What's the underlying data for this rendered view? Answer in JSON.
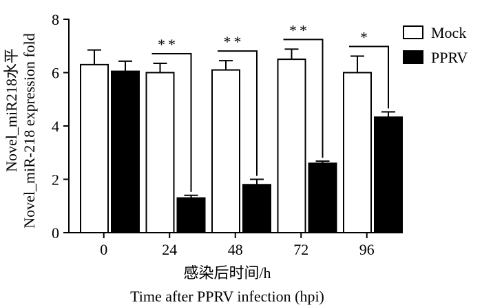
{
  "chart_data": {
    "type": "bar",
    "categories": [
      "0",
      "24",
      "48",
      "72",
      "96"
    ],
    "series": [
      {
        "name": "Mock",
        "values": [
          6.3,
          6.0,
          6.1,
          6.5,
          6.0
        ],
        "errors": [
          0.55,
          0.35,
          0.35,
          0.38,
          0.62
        ],
        "color": "#ffffff"
      },
      {
        "name": "PPRV",
        "values": [
          6.05,
          1.3,
          1.8,
          2.6,
          4.33
        ],
        "errors": [
          0.38,
          0.1,
          0.2,
          0.08,
          0.2
        ],
        "color": "#000000"
      }
    ],
    "significance": [
      "",
      "**",
      "**",
      "**",
      "*"
    ],
    "ylim": [
      0,
      8
    ],
    "yticks": [
      0,
      2,
      4,
      6,
      8
    ],
    "ylabel_lines": [
      "Novel_miR218水平",
      "Novel_miR-218 expression fold"
    ],
    "xlabel_lines": [
      "感染后时间/h",
      "Time after PPRV infection (hpi)"
    ],
    "legend_position": "top-right",
    "grid": false
  }
}
